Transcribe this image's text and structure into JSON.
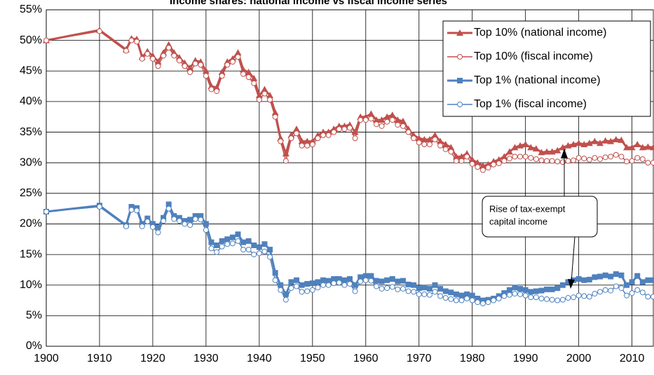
{
  "chart_data": {
    "type": "line",
    "title": "Income shares: national income vs fiscal income series",
    "x": [
      1900,
      1910,
      1915,
      1916,
      1917,
      1918,
      1919,
      1920,
      1921,
      1922,
      1923,
      1924,
      1925,
      1926,
      1927,
      1928,
      1929,
      1930,
      1931,
      1932,
      1933,
      1934,
      1935,
      1936,
      1937,
      1938,
      1939,
      1940,
      1941,
      1942,
      1943,
      1944,
      1945,
      1946,
      1947,
      1948,
      1949,
      1950,
      1951,
      1952,
      1953,
      1954,
      1955,
      1956,
      1957,
      1958,
      1959,
      1960,
      1961,
      1962,
      1963,
      1964,
      1965,
      1966,
      1967,
      1968,
      1969,
      1970,
      1971,
      1972,
      1973,
      1974,
      1975,
      1976,
      1977,
      1978,
      1979,
      1980,
      1981,
      1982,
      1983,
      1984,
      1985,
      1986,
      1987,
      1988,
      1989,
      1990,
      1991,
      1992,
      1993,
      1994,
      1995,
      1996,
      1997,
      1998,
      1999,
      2000,
      2001,
      2002,
      2003,
      2004,
      2005,
      2006,
      2007,
      2008,
      2009,
      2010,
      2011,
      2012,
      2013,
      2014
    ],
    "series": [
      {
        "name": "Top 10% (national income)",
        "color": "#c0504d",
        "marker": "triangle",
        "values": [
          50,
          51.7,
          48.5,
          50.3,
          50.2,
          47.3,
          48.2,
          47.5,
          46.5,
          48,
          49.3,
          48,
          47.2,
          46.3,
          45.5,
          46.7,
          46.5,
          45,
          42.5,
          42.3,
          44.8,
          46.5,
          47,
          48,
          45.2,
          44.8,
          43.8,
          41,
          42,
          41,
          38.2,
          34,
          31.5,
          34.5,
          35.5,
          33.5,
          33.5,
          33.5,
          34.5,
          35,
          35,
          35.5,
          36,
          36,
          36.2,
          35,
          37.5,
          37.5,
          38,
          37,
          37,
          37.5,
          37.8,
          37,
          36.8,
          35.5,
          34.5,
          34,
          33.8,
          33.8,
          34.5,
          33.5,
          33,
          32.5,
          31,
          31,
          31.5,
          30.5,
          30,
          29.5,
          29.7,
          30.2,
          30.5,
          31,
          31.8,
          32.5,
          32.8,
          33,
          32.5,
          32.3,
          31.7,
          31.8,
          31.8,
          32,
          32.5,
          32.8,
          33,
          33.2,
          33,
          33.2,
          33.5,
          33.2,
          33.6,
          33.5,
          33.8,
          33.7,
          32.5,
          32.5,
          33,
          32.5,
          32.6,
          32.5
        ]
      },
      {
        "name": "Top 10% (fiscal income)",
        "color": "#c0504d",
        "marker": "circle",
        "values": [
          50,
          51.5,
          48.3,
          50,
          49.8,
          47,
          47.8,
          47,
          45.8,
          47.5,
          48.8,
          47.5,
          46.7,
          45.8,
          44.8,
          46.2,
          46,
          44.2,
          42,
          41.7,
          44.2,
          46,
          46.5,
          47.3,
          44.5,
          44,
          43,
          40.3,
          41.3,
          40.3,
          37.5,
          33.5,
          30.3,
          34,
          34.8,
          32.8,
          32.8,
          33,
          34,
          34.5,
          34.5,
          35,
          35.5,
          35.5,
          35.7,
          34,
          37,
          37,
          37.2,
          36.3,
          36,
          36.7,
          37,
          36.2,
          36,
          35,
          34,
          33.3,
          33,
          33,
          33.8,
          32.8,
          32.2,
          31.8,
          30.3,
          30.3,
          31,
          29.8,
          29.3,
          28.8,
          29.2,
          29.7,
          29.9,
          30.3,
          30.7,
          31,
          31,
          31,
          30.8,
          30.6,
          30.4,
          30.3,
          30.3,
          30.2,
          30.1,
          30.3,
          30.4,
          30.8,
          30.7,
          30.5,
          30.8,
          30.6,
          30.9,
          31,
          31.3,
          31,
          30.2,
          30.3,
          30.8,
          30.6,
          30,
          30
        ]
      },
      {
        "name": "Top 1% (national income)",
        "color": "#4f81bd",
        "marker": "square",
        "values": [
          22,
          23,
          19.8,
          22.8,
          22.6,
          20,
          20.9,
          20,
          19.5,
          21,
          23.2,
          21.3,
          21,
          20.5,
          20.7,
          21.3,
          21.3,
          20,
          17,
          16.5,
          17.2,
          17.5,
          17.8,
          18.3,
          17,
          17.2,
          16.5,
          16.2,
          16.7,
          15.8,
          12,
          10,
          8.5,
          10.5,
          10.8,
          10,
          10.2,
          10.3,
          10.5,
          10.8,
          10.7,
          11,
          11,
          10.8,
          11,
          10,
          11.3,
          11.5,
          11.5,
          10.7,
          10.6,
          10.8,
          11,
          10.6,
          10.7,
          10.1,
          10,
          9.5,
          9.6,
          9.4,
          10,
          9.4,
          9,
          8.8,
          8.5,
          8.3,
          8.5,
          8.3,
          7.8,
          7.5,
          7.6,
          7.8,
          8.2,
          8.7,
          9.2,
          9.6,
          9.4,
          9.2,
          8.9,
          9,
          9.1,
          9.3,
          9.3,
          9.5,
          10,
          10.5,
          10.8,
          11,
          10.8,
          10.9,
          11.3,
          11.4,
          11.6,
          11.4,
          11.8,
          11.6,
          10,
          10.5,
          11.5,
          10.5,
          10.8,
          10.8
        ]
      },
      {
        "name": "Top 1% (fiscal income)",
        "color": "#4f81bd",
        "marker": "circle",
        "values": [
          22,
          22.8,
          19.6,
          22.3,
          22.2,
          19.6,
          20.4,
          19.5,
          18.6,
          20.5,
          22.5,
          20.8,
          20.5,
          20,
          19.8,
          20.8,
          20.7,
          19,
          16,
          15.4,
          16.3,
          16.7,
          16.8,
          17.2,
          15.8,
          15.8,
          15,
          15.2,
          15.5,
          14.6,
          10.8,
          9.2,
          7.6,
          9.5,
          9.8,
          8.9,
          9,
          9.2,
          9.6,
          10,
          10,
          10.3,
          10.4,
          10,
          10.2,
          9,
          10.6,
          10.8,
          10.7,
          9.8,
          9.4,
          9.5,
          9.7,
          9.3,
          9.4,
          9,
          8.9,
          8.5,
          8.5,
          8.4,
          8.9,
          8.2,
          7.9,
          7.7,
          7.5,
          7.5,
          7.8,
          7.5,
          7.2,
          7,
          7.2,
          7.5,
          7.8,
          8.2,
          8.4,
          8.6,
          8.5,
          8.3,
          8,
          8,
          7.8,
          7.7,
          7.6,
          7.5,
          7.6,
          7.9,
          8,
          8.3,
          8.2,
          8.1,
          8.6,
          8.9,
          9.2,
          9.1,
          9.8,
          9.5,
          8.3,
          8.7,
          9.2,
          8.8,
          8.1,
          8.1
        ]
      }
    ],
    "xlim": [
      1900,
      2014
    ],
    "xticks": [
      1900,
      1910,
      1920,
      1930,
      1940,
      1950,
      1960,
      1970,
      1980,
      1990,
      2000,
      2010
    ],
    "ylim": [
      0,
      55
    ],
    "yticks": [
      {
        "value": 0,
        "label": "0%"
      },
      {
        "value": 5,
        "label": "5%"
      },
      {
        "value": 10,
        "label": "10%"
      },
      {
        "value": 15,
        "label": "15%"
      },
      {
        "value": 20,
        "label": "20%"
      },
      {
        "value": 25,
        "label": "25%"
      },
      {
        "value": 30,
        "label": "30%"
      },
      {
        "value": 35,
        "label": "35%"
      },
      {
        "value": 40,
        "label": "40%"
      },
      {
        "value": 45,
        "label": "45%"
      },
      {
        "value": 50,
        "label": "50%"
      },
      {
        "value": 55,
        "label": "55%"
      }
    ],
    "grid": true,
    "legend": "top-right",
    "annotation": [
      "Rise of tax-exempt",
      "capital income"
    ]
  }
}
